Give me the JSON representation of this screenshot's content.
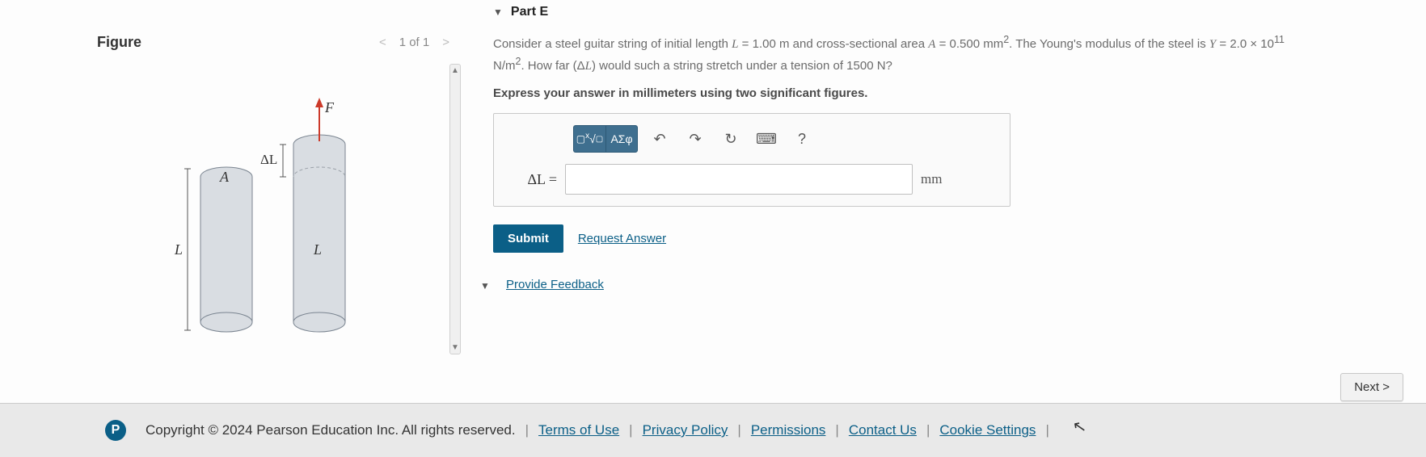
{
  "figure": {
    "title": "Figure",
    "pager": {
      "prev": "<",
      "count": "1 of 1",
      "next": ">"
    },
    "labels": {
      "A": "A",
      "L": "L",
      "dL": "ΔL",
      "F": "F"
    },
    "colors": {
      "cylinder_fill": "#d9dde2",
      "cylinder_stroke": "#7a8490",
      "dashed": "#9aa0a8",
      "bracket": "#555555",
      "force": "#cc3a2a",
      "text": "#333333"
    }
  },
  "part": {
    "header": "Part E",
    "problem_html": "Consider a steel guitar string of initial length <span class='math'>L</span> = 1.00 m and cross-sectional area <span class='math'>A</span> = 0.500 mm<sup>2</sup>. The Young's modulus of the steel is <span class='math'>Y</span> = 2.0 × 10<sup>11</sup> N/m<sup>2</sup>. How far (Δ<span class='math'>L</span>) would such a string stretch under a tension of 1500 N?",
    "instruction": "Express your answer in millimeters using two significant figures.",
    "toolbar": {
      "templates_label": "x√",
      "greek_label": "ΑΣφ",
      "undo": "↶",
      "redo": "↷",
      "reset": "↻",
      "keyboard": "⌨",
      "help": "?"
    },
    "answer": {
      "label": "ΔL =",
      "value": "",
      "unit": "mm"
    },
    "submit": "Submit",
    "request_answer": "Request Answer",
    "feedback": "Provide Feedback"
  },
  "next_label": "Next >",
  "footer": {
    "copyright": "Copyright © 2024 Pearson Education Inc. All rights reserved.",
    "links": [
      "Terms of Use",
      "Privacy Policy",
      "Permissions",
      "Contact Us",
      "Cookie Settings"
    ]
  }
}
